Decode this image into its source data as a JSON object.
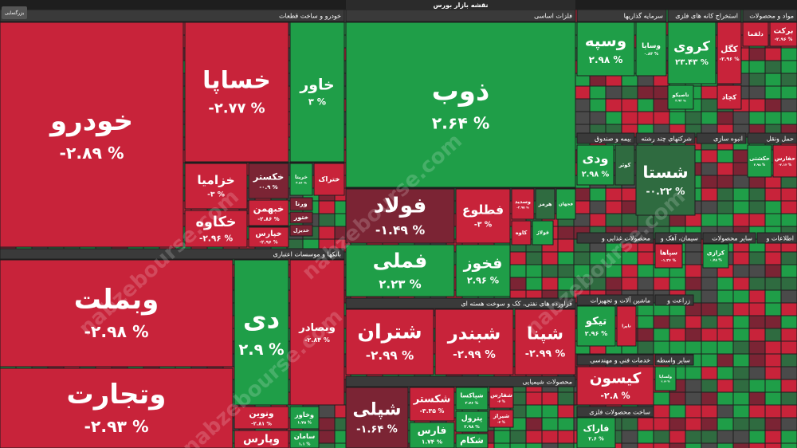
{
  "header": {
    "title": "نقشه بازار بورس",
    "zoom_button": "بزرگنمایی"
  },
  "watermark": "nabzebourse.com",
  "sectors": [
    {
      "title": "خودرو و ساخت قطعات",
      "tiles": [
        {
          "name": "خودرو",
          "change": "-۲.۸۹ %"
        },
        {
          "name": "خساپا",
          "change": "-۲.۷۷ %"
        },
        {
          "name": "خاور",
          "change": "۳ %"
        },
        {
          "name": "خزامیا",
          "change": "-۳ %"
        },
        {
          "name": "خکاوه",
          "change": "-۲.۹۶ %"
        },
        {
          "name": "خکستر",
          "change": "-۰.۹ %"
        },
        {
          "name": "خبهمن",
          "change": "-۲.۸۶ %"
        },
        {
          "name": "خپارس",
          "change": "-۲.۹۶ %"
        },
        {
          "name": "خریتا",
          "change": "۲.۸۶ %"
        },
        {
          "name": "ختراک"
        },
        {
          "name": "ورنا"
        },
        {
          "name": "ختور"
        },
        {
          "name": "خدیزل"
        }
      ]
    },
    {
      "title": "بانکها و موسسات اعتباری",
      "tiles": [
        {
          "name": "وبملت",
          "change": "-۲.۹۸ %"
        },
        {
          "name": "وتجارت",
          "change": "-۲.۹۳ %"
        },
        {
          "name": "دی",
          "change": "۲.۹ %"
        },
        {
          "name": "وبصادر",
          "change": "-۲.۸۴ %"
        },
        {
          "name": "ونوین",
          "change": "-۲.۸۱ %"
        },
        {
          "name": "وپارس"
        },
        {
          "name": "وخاور",
          "change": "۱.۷۵ %"
        },
        {
          "name": "سامان",
          "change": "۱.۱ %"
        }
      ]
    },
    {
      "title": "فلزات اساسی",
      "tiles": [
        {
          "name": "ذوب",
          "change": "۲.۶۴ %"
        },
        {
          "name": "فولاد",
          "change": "-۱.۴۹ %"
        },
        {
          "name": "فملی",
          "change": "۲.۲۳ %"
        },
        {
          "name": "فطلوع",
          "change": "-۳ %"
        },
        {
          "name": "فخوز",
          "change": "۲.۹۶ %"
        },
        {
          "name": "وسدید",
          "change": "-۲.۹۵ %"
        },
        {
          "name": "هرمز"
        },
        {
          "name": "فجهان"
        },
        {
          "name": "کاوه"
        },
        {
          "name": "فولاژ"
        }
      ]
    },
    {
      "title": "فراورده های نفتی، کک و سوخت هسته ای",
      "tiles": [
        {
          "name": "شتران",
          "change": "-۲.۹۹ %"
        },
        {
          "name": "شبندر",
          "change": "-۲.۹۹ %"
        },
        {
          "name": "شپنا",
          "change": "-۲.۹۹ %"
        }
      ]
    },
    {
      "title": "محصولات شیمیایی",
      "tiles": [
        {
          "name": "شپلی",
          "change": "-۱.۶۴ %"
        },
        {
          "name": "شکستر",
          "change": "-۳.۳۵ %"
        },
        {
          "name": "فارس",
          "change": "۱.۷۴ %"
        },
        {
          "name": "شپاکسا",
          "change": "۲.۷۶ %"
        },
        {
          "name": "پترول",
          "change": "۲.۹۸ %"
        },
        {
          "name": "شکام"
        },
        {
          "name": "شفارس",
          "change": "-۳ %"
        },
        {
          "name": "شیراز",
          "change": "-۳ %"
        }
      ]
    },
    {
      "title": "سرمایه گذاریها",
      "tiles": [
        {
          "name": "وسپه",
          "change": "۲.۹۸ %"
        },
        {
          "name": "وسایا",
          "change": "۰.۸۳ %"
        }
      ]
    },
    {
      "title": "استخراج کانه های فلزی",
      "tiles": [
        {
          "name": "کروی",
          "change": "۲۳.۴۳ %"
        },
        {
          "name": "کگل",
          "change": "-۲.۹۶ %"
        },
        {
          "name": "تاصیکو",
          "change": "۲.۹۳ %"
        },
        {
          "name": "کچاد"
        }
      ]
    },
    {
      "title": "مواد و محصولات",
      "tiles": [
        {
          "name": "برکت",
          "change": "-۲.۹۶ %"
        },
        {
          "name": "دلقما"
        }
      ]
    },
    {
      "title": "بیمه و صندوق",
      "tiles": [
        {
          "name": "ودی",
          "change": "۲.۹۸ %"
        },
        {
          "name": "کوثر"
        }
      ]
    },
    {
      "title": "شرکتهای چند رشته",
      "tiles": [
        {
          "name": "شستا",
          "change": "-۰.۲۲ %"
        }
      ]
    },
    {
      "title": "انبوه سازی",
      "tiles": []
    },
    {
      "title": "حمل ونقل",
      "tiles": [
        {
          "name": "حکشتی",
          "change": "۲.۹۸ %"
        },
        {
          "name": "حفارس",
          "change": "-۲.۱۲ %"
        }
      ]
    },
    {
      "title": "محصولات غذایی و",
      "tiles": []
    },
    {
      "title": "سیمان، آهک و",
      "tiles": [
        {
          "name": "سپاها",
          "change": "-۱.۲۶ %"
        }
      ]
    },
    {
      "title": "سایر محصولات",
      "tiles": [
        {
          "name": "کرازی",
          "change": "۰.۷۸ %"
        }
      ]
    },
    {
      "title": "اطلاعات و",
      "tiles": []
    },
    {
      "title": "ماشین آلات و تجهیزات",
      "tiles": [
        {
          "name": "تیکو",
          "change": "۲.۹۶ %"
        },
        {
          "name": "تاپرا"
        }
      ]
    },
    {
      "title": "زراعت و",
      "tiles": []
    },
    {
      "title": "خدمات فنی و مهندسی",
      "tiles": [
        {
          "name": "کیسون",
          "change": "-۲.۸ %"
        }
      ]
    },
    {
      "title": "سایر واسطه",
      "tiles": [
        {
          "name": "ولساپا",
          "change": "۲.۱۴ %"
        }
      ]
    },
    {
      "title": "ساخت محصولات فلزی",
      "tiles": [
        {
          "name": "فاراک",
          "change": "۲.۶ %"
        }
      ]
    }
  ]
}
